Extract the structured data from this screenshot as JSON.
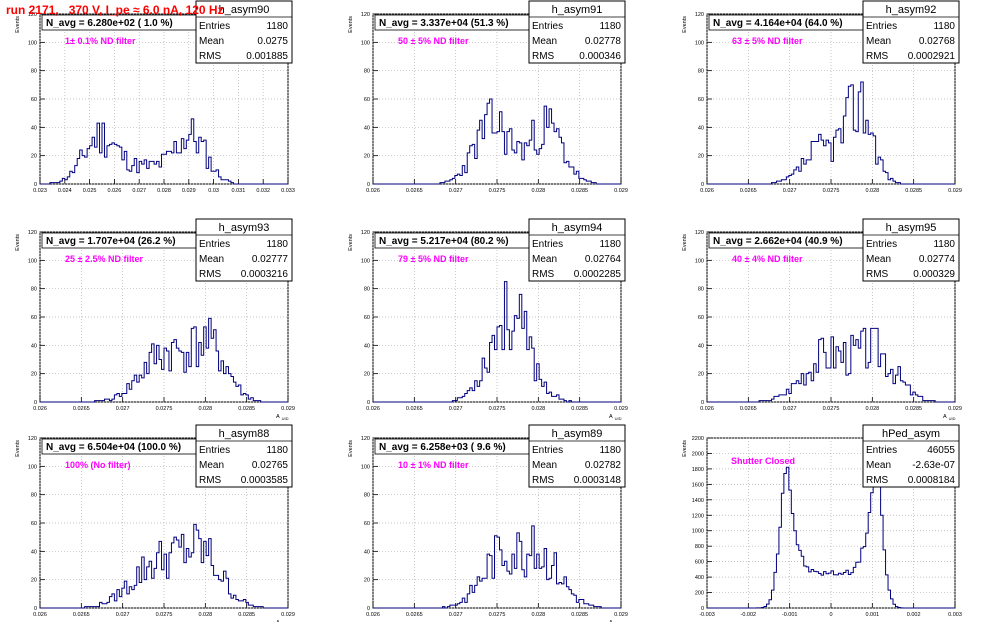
{
  "header": {
    "run_title": "run 2171,   370 V, I_pe ≈ 6.0 nA, 120 Hz"
  },
  "colors": {
    "histogram_line": "#00007f",
    "annotation": "#ff00ff",
    "run_title": "#ff0000",
    "grid": "#b0b0b0"
  },
  "stats_labels": [
    "Entries",
    "Mean",
    "RMS"
  ],
  "chart_data": [
    {
      "type": "histogram",
      "name": "h_asym90",
      "navg": "N_avg = 6.280e+02 ( 1.0 %)",
      "note": "1± 0.1% ND filter",
      "stats": [
        "1180",
        "0.0275",
        "0.001885"
      ],
      "ylabel": "Events",
      "xlabel": "",
      "xlim": [
        0.023,
        0.033
      ],
      "ylim": [
        0,
        120
      ],
      "xticks": [
        "0.023",
        "0.024",
        "0.025",
        "0.026",
        "0.027",
        "0.028",
        "0.029",
        "0.03",
        "0.031",
        "0.032",
        "0.033"
      ],
      "yticks": [
        "0",
        "20",
        "40",
        "60",
        "80",
        "100",
        "120"
      ],
      "grid": true,
      "peaks": [
        [
          0.0254,
          0.00065,
          30
        ],
        [
          0.0291,
          0.0006,
          30
        ],
        [
          0.0273,
          0.0013,
          12
        ]
      ],
      "seed": 11
    },
    {
      "type": "histogram",
      "name": "h_asym91",
      "navg": "N_avg = 3.337e+04 (51.3 %)",
      "note": "50 ± 5% ND filter",
      "stats": [
        "1180",
        "0.02778",
        "0.000346"
      ],
      "ylabel": "Events",
      "xlabel": "",
      "xlim": [
        0.026,
        0.029
      ],
      "ylim": [
        0,
        120
      ],
      "xticks": [
        "0.026",
        "0.0265",
        "0.027",
        "0.0275",
        "0.028",
        "0.0285",
        "0.029"
      ],
      "yticks": [
        "0",
        "20",
        "40",
        "60",
        "80",
        "100",
        "120"
      ],
      "grid": true,
      "peaks": [
        [
          0.02745,
          0.00022,
          42
        ],
        [
          0.0281,
          0.0002,
          40
        ]
      ],
      "seed": 23
    },
    {
      "type": "histogram",
      "name": "h_asym92",
      "navg": "N_avg = 4.164e+04 (64.0 %)",
      "note": "63 ± 5% ND filter",
      "stats": [
        "1180",
        "0.02768",
        "0.0002921"
      ],
      "ylabel": "Events",
      "xlabel": "",
      "xlim": [
        0.026,
        0.029
      ],
      "ylim": [
        0,
        120
      ],
      "xticks": [
        "0.026",
        "0.0265",
        "0.027",
        "0.0275",
        "0.028",
        "0.0285",
        "0.029"
      ],
      "yticks": [
        "0",
        "20",
        "40",
        "60",
        "80",
        "100",
        "120"
      ],
      "grid": true,
      "peaks": [
        [
          0.02785,
          0.00016,
          55
        ],
        [
          0.0274,
          0.00022,
          25
        ]
      ],
      "seed": 37
    },
    {
      "type": "histogram",
      "name": "h_asym93",
      "navg": "N_avg = 1.707e+04 (26.2 %)",
      "note": "25 ± 2.5% ND filter",
      "stats": [
        "1180",
        "0.02777",
        "0.0003216"
      ],
      "ylabel": "Events",
      "xlabel": "A UID",
      "xlim": [
        0.026,
        0.029
      ],
      "ylim": [
        0,
        120
      ],
      "xticks": [
        "0.026",
        "0.0265",
        "0.027",
        "0.0275",
        "0.028",
        "0.0285",
        "0.029"
      ],
      "yticks": [
        "0",
        "20",
        "40",
        "60",
        "80",
        "100",
        "120"
      ],
      "grid": true,
      "peaks": [
        [
          0.0275,
          0.00028,
          33
        ],
        [
          0.02805,
          0.00022,
          36
        ]
      ],
      "seed": 41
    },
    {
      "type": "histogram",
      "name": "h_asym94",
      "navg": "N_avg = 5.217e+04 (80.2 %)",
      "note": "79 ± 5% ND filter",
      "stats": [
        "1180",
        "0.02764",
        "0.0002285"
      ],
      "ylabel": "Events",
      "xlabel": "A UID",
      "xlim": [
        0.026,
        0.029
      ],
      "ylim": [
        0,
        120
      ],
      "xticks": [
        "0.026",
        "0.0265",
        "0.027",
        "0.0275",
        "0.028",
        "0.0285",
        "0.029"
      ],
      "yticks": [
        "0",
        "20",
        "40",
        "60",
        "80",
        "100",
        "120"
      ],
      "grid": true,
      "peaks": [
        [
          0.02765,
          0.00024,
          62
        ]
      ],
      "seed": 53
    },
    {
      "type": "histogram",
      "name": "h_asym95",
      "navg": "N_avg = 2.662e+04 (40.9 %)",
      "note": "40 ± 4% ND filter",
      "stats": [
        "1180",
        "0.02774",
        "0.000329"
      ],
      "ylabel": "Events",
      "xlabel": "A UID",
      "xlim": [
        0.026,
        0.029
      ],
      "ylim": [
        0,
        120
      ],
      "xticks": [
        "0.026",
        "0.0265",
        "0.027",
        "0.0275",
        "0.028",
        "0.0285",
        "0.029"
      ],
      "yticks": [
        "0",
        "20",
        "40",
        "60",
        "80",
        "100",
        "120"
      ],
      "grid": true,
      "peaks": [
        [
          0.02745,
          0.00028,
          33
        ],
        [
          0.02805,
          0.00024,
          34
        ]
      ],
      "seed": 67
    },
    {
      "type": "histogram",
      "name": "h_asym88",
      "navg": "N_avg = 6.504e+04 (100.0 %)",
      "note": "100% (No filter)",
      "stats": [
        "1180",
        "0.02765",
        "0.0003585"
      ],
      "ylabel": "Events",
      "xlabel": "A UID",
      "xlim": [
        0.026,
        0.029
      ],
      "ylim": [
        0,
        120
      ],
      "xticks": [
        "0.026",
        "0.0265",
        "0.027",
        "0.0275",
        "0.028",
        "0.0285",
        "0.029"
      ],
      "yticks": [
        "0",
        "20",
        "40",
        "60",
        "80",
        "100",
        "120"
      ],
      "grid": true,
      "peaks": [
        [
          0.0274,
          0.0003,
          30
        ],
        [
          0.02795,
          0.00025,
          36
        ]
      ],
      "seed": 79
    },
    {
      "type": "histogram",
      "name": "h_asym89",
      "navg": "N_avg = 6.258e+03 ( 9.6 %)",
      "note": "10 ± 1% ND filter",
      "stats": [
        "1180",
        "0.02782",
        "0.0003148"
      ],
      "ylabel": "Events",
      "xlabel": "A UID",
      "xlim": [
        0.026,
        0.029
      ],
      "ylim": [
        0,
        120
      ],
      "xticks": [
        "0.026",
        "0.0265",
        "0.027",
        "0.0275",
        "0.028",
        "0.0285",
        "0.029"
      ],
      "yticks": [
        "0",
        "20",
        "40",
        "60",
        "80",
        "100",
        "120"
      ],
      "grid": true,
      "peaks": [
        [
          0.02755,
          0.00024,
          36
        ],
        [
          0.02805,
          0.00024,
          34
        ]
      ],
      "seed": 83
    },
    {
      "type": "histogram",
      "name": "hPed_asym",
      "navg": "",
      "note": "Shutter Closed",
      "stats": [
        "46055",
        "-2.63e-07",
        "0.0008184"
      ],
      "stats_labels": [
        "Entries",
        "Mean",
        "RMS"
      ],
      "ylabel": "Events",
      "xlabel": "",
      "xlim": [
        -0.003,
        0.003
      ],
      "ylim": [
        0,
        2200
      ],
      "xticks": [
        "-0.003",
        "-0.002",
        "-0.001",
        "0",
        "0.001",
        "0.002",
        "0.003"
      ],
      "yticks": [
        "0",
        "200",
        "400",
        "600",
        "800",
        "1000",
        "1200",
        "1400",
        "1600",
        "1800",
        "2000",
        "2200"
      ],
      "grid": true,
      "pedestal": true,
      "seed": 97
    }
  ]
}
